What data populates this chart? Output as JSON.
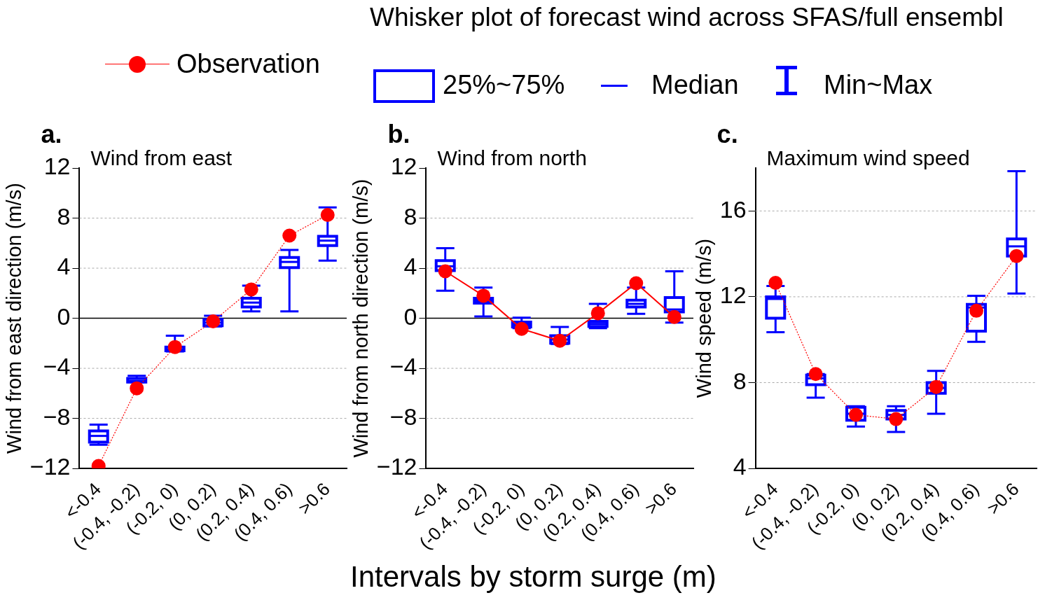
{
  "chart_data": [
    {
      "type": "box",
      "title": "Wind from east",
      "ylabel": "Wind from east direction (m/s)",
      "xlabel": "Intervals by storm surge (m)",
      "legend": "top left",
      "annotations": [
        "a.",
        "25%~75%",
        "Median",
        "Min~Max"
      ],
      "categories": [
        "<-0.4",
        "(-0.4, -0.2)",
        "(-0.2, 0)",
        "(0, 0.2)",
        "(0.2, 0.4)",
        "(0.4, 0.6)",
        ">0.6"
      ],
      "ylim": [
        -12,
        12
      ],
      "yticks": [
        -12,
        -8,
        -4,
        0,
        4,
        8,
        12
      ],
      "grid": "y",
      "ref_lines": [
        {
          "axis": "y",
          "value": 0,
          "color": "#000000"
        }
      ],
      "color": "#0000ff",
      "boxes": [
        {
          "low": -10.1,
          "q1": -9.9,
          "median": -9.4,
          "q3": -9.0,
          "high": -8.5
        },
        {
          "low": -5.1,
          "q1": -5.1,
          "median": -5.0,
          "q3": -4.8,
          "high": -4.6
        },
        {
          "low": -2.65,
          "q1": -2.6,
          "median": -2.5,
          "q3": -2.3,
          "high": -1.4
        },
        {
          "low": -0.65,
          "q1": -0.6,
          "median": -0.35,
          "q3": -0.1,
          "high": 0.2
        },
        {
          "low": 0.55,
          "q1": 0.9,
          "median": 1.25,
          "q3": 1.6,
          "high": 2.6
        },
        {
          "low": 0.55,
          "q1": 4.05,
          "median": 4.5,
          "q3": 4.85,
          "high": 5.45
        },
        {
          "low": 4.6,
          "q1": 5.8,
          "median": 6.2,
          "q3": 6.55,
          "high": 8.85
        }
      ],
      "series": [
        {
          "type": "line",
          "name": "Observation",
          "color": "#ff0000",
          "marker": "circle",
          "line_style": "dotted",
          "values": [
            -11.8,
            -5.6,
            -2.3,
            -0.25,
            2.3,
            6.6,
            8.25
          ]
        }
      ]
    },
    {
      "type": "box",
      "title": "Wind from north",
      "ylabel": "Wind from north direction (m/s)",
      "annotations": [
        "b.",
        "Whisker plot of forecast wind across SFAS/full ensembl"
      ],
      "categories": [
        "<-0.4",
        "(-0.4, -0.2)",
        "(-0.2, 0)",
        "(0, 0.2)",
        "(0.2, 0.4)",
        "(0.4, 0.6)",
        ">0.6"
      ],
      "ylim": [
        -12,
        12
      ],
      "yticks": [
        -12,
        -8,
        -4,
        0,
        4,
        8,
        12
      ],
      "grid": "y",
      "ref_lines": [
        {
          "axis": "y",
          "value": 0,
          "color": "#000000"
        }
      ],
      "color": "#0000ff",
      "boxes": [
        {
          "low": 2.2,
          "q1": 3.8,
          "median": 4.15,
          "q3": 4.6,
          "high": 5.6
        },
        {
          "low": 0.15,
          "q1": 1.2,
          "median": 1.4,
          "q3": 1.6,
          "high": 2.45
        },
        {
          "low": -0.8,
          "q1": -0.7,
          "median": -0.5,
          "q3": -0.3,
          "high": 0.05
        },
        {
          "low": -2.05,
          "q1": -2.0,
          "median": -1.7,
          "q3": -1.4,
          "high": -0.7
        },
        {
          "low": -0.8,
          "q1": -0.65,
          "median": -0.45,
          "q3": -0.25,
          "high": 1.15
        },
        {
          "low": 0.35,
          "q1": 0.9,
          "median": 1.15,
          "q3": 1.45,
          "high": 2.45
        },
        {
          "low": -0.35,
          "q1": 0.5,
          "median": 0.7,
          "q3": 1.65,
          "high": 3.75
        }
      ],
      "series": [
        {
          "type": "line",
          "color": "#ff0000",
          "marker": "circle",
          "line_style": "solid",
          "values": [
            3.75,
            1.8,
            -0.85,
            -1.8,
            0.4,
            2.8,
            0.1
          ]
        }
      ]
    },
    {
      "type": "box",
      "title": "Maximum wind speed",
      "ylabel": "Wind speed (m/s)",
      "annotations": [
        "c."
      ],
      "categories": [
        "<-0.4",
        "(-0.4, -0.2)",
        "(-0.2, 0)",
        "(0, 0.2)",
        "(0.2, 0.4)",
        "(0.4, 0.6)",
        ">0.6"
      ],
      "ylim": [
        4,
        18
      ],
      "yticks": [
        4,
        8,
        12,
        16
      ],
      "grid": "y",
      "color": "#0000ff",
      "boxes": [
        {
          "low": 10.35,
          "q1": 11.0,
          "median": 11.9,
          "q3": 12.0,
          "high": 12.5
        },
        {
          "low": 7.3,
          "q1": 7.9,
          "median": 8.2,
          "q3": 8.35,
          "high": 8.4
        },
        {
          "low": 5.95,
          "q1": 6.25,
          "median": 6.55,
          "q3": 6.85,
          "high": 6.9
        },
        {
          "low": 5.7,
          "q1": 6.3,
          "median": 6.5,
          "q3": 6.7,
          "high": 6.9
        },
        {
          "low": 6.55,
          "q1": 7.5,
          "median": 7.75,
          "q3": 8.0,
          "high": 8.55
        },
        {
          "low": 9.9,
          "q1": 10.4,
          "median": 11.5,
          "q3": 11.65,
          "high": 12.05
        },
        {
          "low": 12.15,
          "q1": 13.9,
          "median": 14.35,
          "q3": 14.7,
          "high": 17.85
        }
      ],
      "series": [
        {
          "type": "line",
          "color": "#ff0000",
          "marker": "circle",
          "line_style": "dotted",
          "values": [
            12.65,
            8.4,
            6.5,
            6.3,
            7.8,
            11.35,
            13.9
          ]
        }
      ]
    }
  ]
}
